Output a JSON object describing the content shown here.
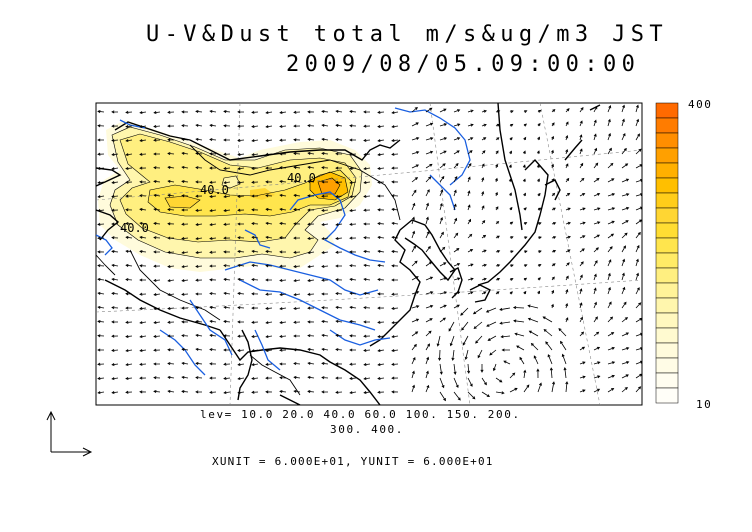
{
  "title": {
    "line1": "U-V&Dust total m/s&ug/m3 JST",
    "line2": "2009/08/05.09:00:00"
  },
  "legend": {
    "lev_line1": "lev= 10.0 20.0 40.0 60.0 100. 150. 200.",
    "lev_line2": "300. 400.",
    "units": "XUNIT = 6.000E+01, YUNIT = 6.000E+01"
  },
  "colorbar": {
    "max_label": "400",
    "min_label": "10",
    "colors": [
      "#ff6a00",
      "#ff7c00",
      "#ff8e00",
      "#ffa000",
      "#ffb000",
      "#ffbf00",
      "#ffcd1a",
      "#ffd633",
      "#ffdd33",
      "#ffe54d",
      "#ffeb66",
      "#ffef80",
      "#fff399",
      "#fff6ad",
      "#fff8bf",
      "#fffad0",
      "#fffbdc",
      "#fffce6",
      "#fffdf0",
      "#fffef8"
    ]
  },
  "contour_labels": [
    "40.0",
    "40.0",
    "40.0"
  ],
  "colors": {
    "coast": "#000000",
    "river": "#1a5fe0",
    "grid": "#888888"
  }
}
